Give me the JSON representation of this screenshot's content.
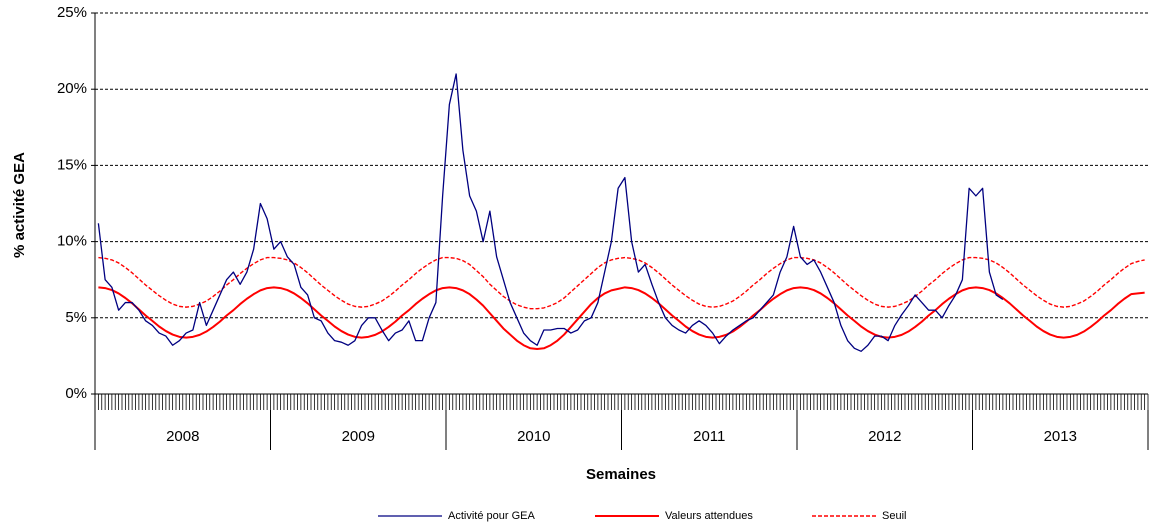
{
  "chart_data": {
    "type": "line",
    "xlabel": "Semaines",
    "ylabel": "% activité GEA",
    "year_labels": [
      "2008",
      "2009",
      "2010",
      "2011",
      "2012",
      "2013"
    ],
    "ylim": [
      0,
      25
    ],
    "yticks": [
      {
        "value": 0,
        "label": "0%"
      },
      {
        "value": 5,
        "label": "5%"
      },
      {
        "value": 10,
        "label": "10%"
      },
      {
        "value": 15,
        "label": "15%"
      },
      {
        "value": 20,
        "label": "20%"
      },
      {
        "value": 25,
        "label": "25%"
      }
    ],
    "grid": true,
    "legend": "bottom",
    "series": [
      {
        "name": "Activité pour  GEA",
        "color": "#000080",
        "style": "solid",
        "values": [
          11.2,
          7.5,
          7,
          5.5,
          6,
          6,
          5.5,
          4.8,
          4.5,
          4,
          3.8,
          3.2,
          3.5,
          4,
          4.2,
          6,
          4.5,
          5.5,
          6.5,
          7.5,
          8,
          7.2,
          8,
          9.5,
          12.5,
          11.5,
          9.5,
          10,
          9,
          8.5,
          7,
          6.5,
          5,
          4.8,
          4,
          3.5,
          3.4,
          3.2,
          3.5,
          4.5,
          5,
          5,
          4.2,
          3.5,
          4,
          4.2,
          4.8,
          3.5,
          3.5,
          5,
          6,
          13,
          19,
          21,
          16,
          13,
          12,
          10,
          12,
          9,
          7.5,
          6,
          5,
          4,
          3.5,
          3.2,
          4.2,
          4.2,
          4.3,
          4.3,
          4,
          4.2,
          4.8,
          5,
          6,
          8,
          10,
          13.5,
          14.2,
          10,
          8,
          8.5,
          7.2,
          6,
          5,
          4.5,
          4.2,
          4,
          4.5,
          4.8,
          4.5,
          4,
          3.3,
          3.8,
          4.2,
          4.5,
          4.8,
          5,
          5.5,
          6,
          6.5,
          8,
          9,
          11,
          9,
          8.5,
          8.8,
          8,
          7,
          6,
          4.5,
          3.5,
          3,
          2.8,
          3.2,
          3.8,
          3.8,
          3.5,
          4.5,
          5.2,
          5.8,
          6.5,
          6,
          5.5,
          5.5,
          5,
          5.8,
          6.5,
          7.5,
          13.5,
          13,
          13.5,
          8,
          6.5,
          6.2,
          null,
          null,
          null,
          null,
          null,
          null,
          null,
          null,
          null,
          null,
          null,
          null,
          null,
          null,
          null,
          null,
          null,
          null,
          null,
          null,
          null
        ]
      },
      {
        "name": "Valeurs attendues",
        "color": "#ff0000",
        "style": "solid",
        "values": [
          7.0,
          6.95,
          6.82,
          6.6,
          6.3,
          5.95,
          5.55,
          5.15,
          4.8,
          4.43,
          4.13,
          3.9,
          3.75,
          3.7,
          3.75,
          3.88,
          4.1,
          4.4,
          4.75,
          5.15,
          5.5,
          5.9,
          6.25,
          6.55,
          6.8,
          6.95,
          7.0,
          6.95,
          6.82,
          6.6,
          6.3,
          5.95,
          5.55,
          5.15,
          4.8,
          4.43,
          4.13,
          3.9,
          3.75,
          3.7,
          3.75,
          3.88,
          4.1,
          4.4,
          4.75,
          5.15,
          5.5,
          5.9,
          6.25,
          6.55,
          6.8,
          6.95,
          7.0,
          6.95,
          6.8,
          6.55,
          6.2,
          5.8,
          5.3,
          4.8,
          4.3,
          3.9,
          3.5,
          3.2,
          3.0,
          2.95,
          3.0,
          3.2,
          3.5,
          3.9,
          4.4,
          4.9,
          5.4,
          5.9,
          6.3,
          6.6,
          6.8,
          6.9,
          7.0,
          6.95,
          6.82,
          6.6,
          6.3,
          5.95,
          5.55,
          5.15,
          4.8,
          4.43,
          4.13,
          3.9,
          3.75,
          3.7,
          3.75,
          3.88,
          4.1,
          4.4,
          4.75,
          5.15,
          5.5,
          5.9,
          6.25,
          6.55,
          6.8,
          6.95,
          7.0,
          6.95,
          6.82,
          6.6,
          6.3,
          5.95,
          5.55,
          5.15,
          4.8,
          4.43,
          4.13,
          3.9,
          3.75,
          3.7,
          3.75,
          3.88,
          4.1,
          4.4,
          4.75,
          5.15,
          5.5,
          5.9,
          6.25,
          6.55,
          6.8,
          6.95,
          7.0,
          6.95,
          6.82,
          6.6,
          6.3,
          5.95,
          5.55,
          5.15,
          4.8,
          4.43,
          4.13,
          3.9,
          3.75,
          3.7,
          3.75,
          3.88,
          4.1,
          4.4,
          4.75,
          5.15,
          5.5,
          5.9,
          6.25,
          6.55,
          6.6,
          6.65
        ]
      },
      {
        "name": "Seuil",
        "color": "#ff0000",
        "style": "dashed",
        "values": [
          8.95,
          8.9,
          8.8,
          8.6,
          8.3,
          7.95,
          7.55,
          7.15,
          6.8,
          6.45,
          6.15,
          5.9,
          5.75,
          5.7,
          5.75,
          5.9,
          6.1,
          6.4,
          6.75,
          7.15,
          7.5,
          7.9,
          8.25,
          8.55,
          8.8,
          8.95,
          8.95,
          8.9,
          8.8,
          8.6,
          8.3,
          7.95,
          7.55,
          7.15,
          6.8,
          6.45,
          6.15,
          5.9,
          5.75,
          5.7,
          5.75,
          5.9,
          6.1,
          6.4,
          6.75,
          7.15,
          7.5,
          7.9,
          8.25,
          8.55,
          8.8,
          8.95,
          8.95,
          8.9,
          8.75,
          8.5,
          8.1,
          7.7,
          7.2,
          6.8,
          6.4,
          6.1,
          5.85,
          5.7,
          5.6,
          5.6,
          5.65,
          5.8,
          6.0,
          6.3,
          6.7,
          7.1,
          7.5,
          7.9,
          8.3,
          8.6,
          8.8,
          8.9,
          8.95,
          8.9,
          8.8,
          8.6,
          8.3,
          7.95,
          7.55,
          7.15,
          6.8,
          6.45,
          6.15,
          5.9,
          5.75,
          5.7,
          5.75,
          5.9,
          6.1,
          6.4,
          6.75,
          7.15,
          7.5,
          7.9,
          8.25,
          8.55,
          8.8,
          8.95,
          8.95,
          8.9,
          8.8,
          8.6,
          8.3,
          7.95,
          7.55,
          7.15,
          6.8,
          6.45,
          6.15,
          5.9,
          5.75,
          5.7,
          5.75,
          5.9,
          6.1,
          6.4,
          6.75,
          7.15,
          7.5,
          7.9,
          8.25,
          8.55,
          8.8,
          8.95,
          8.95,
          8.9,
          8.8,
          8.6,
          8.3,
          7.95,
          7.55,
          7.15,
          6.8,
          6.45,
          6.15,
          5.9,
          5.75,
          5.7,
          5.75,
          5.9,
          6.1,
          6.4,
          6.75,
          7.15,
          7.5,
          7.9,
          8.25,
          8.55,
          8.7,
          8.8
        ]
      }
    ]
  }
}
